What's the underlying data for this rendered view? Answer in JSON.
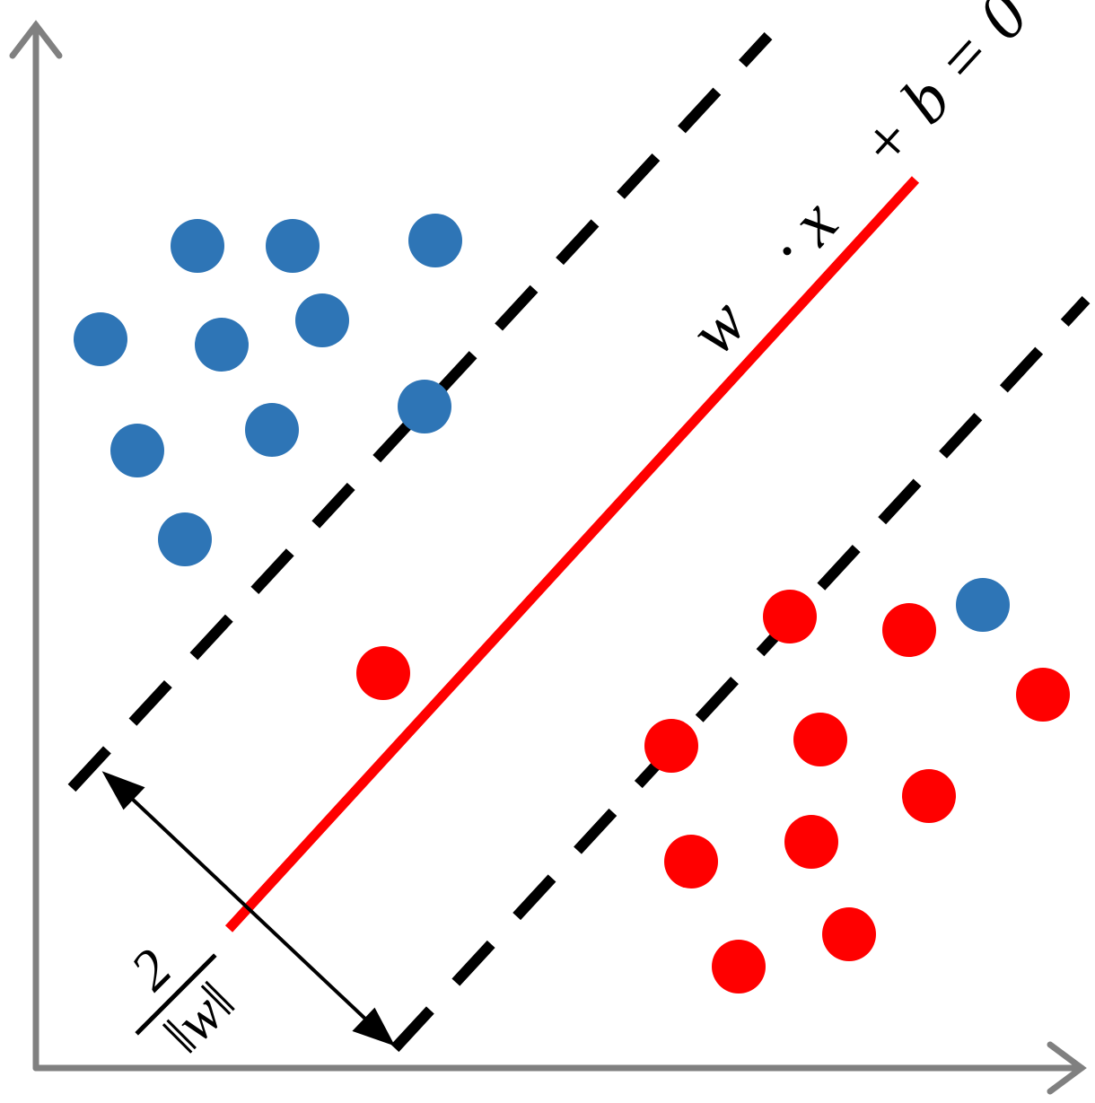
{
  "hyperplane_label": "w⃗ · x⃗ + b = 0",
  "margin_label": {
    "numerator": "2",
    "denominator": "‖w‖"
  }
}
